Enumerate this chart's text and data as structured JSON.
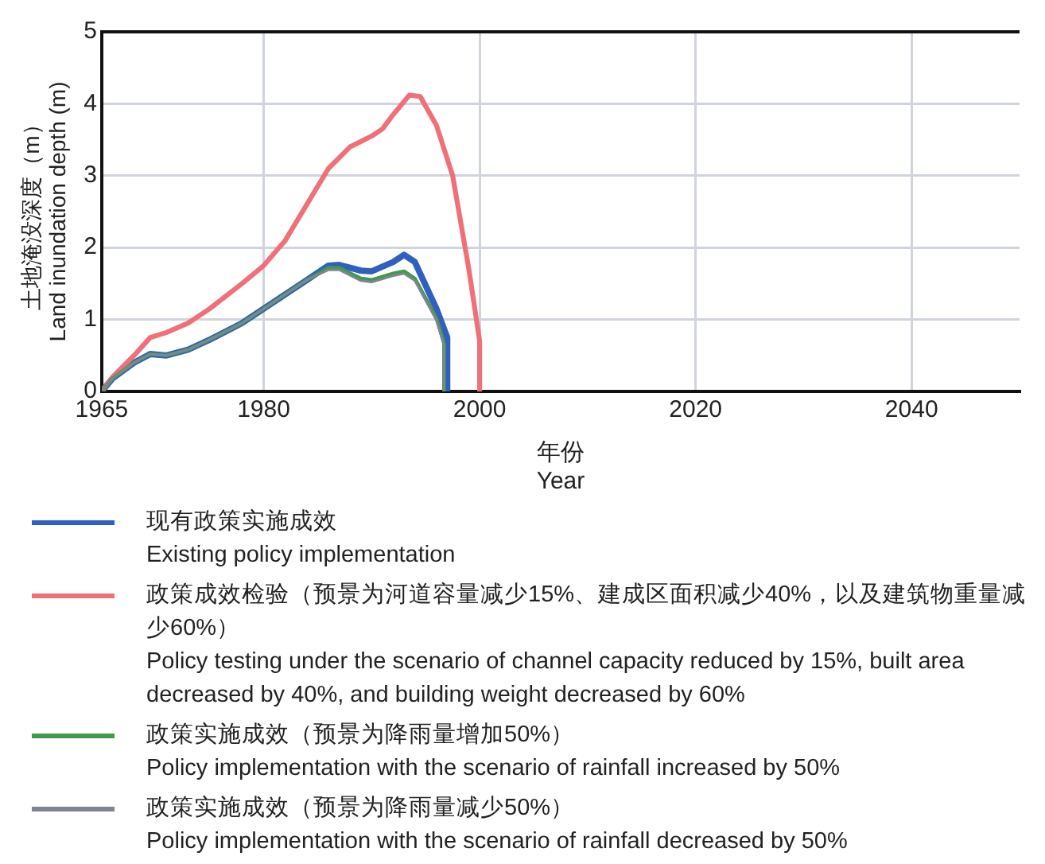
{
  "chart_data": {
    "type": "line",
    "xlabel": "年份\nYear",
    "ylabel": "土地淹没深度（m）\nLand inundation depth (m)",
    "xlim": [
      1965,
      2050
    ],
    "xticks": [
      1965,
      1980,
      2000,
      2020,
      2040
    ],
    "ylim": [
      0,
      5
    ],
    "yticks": [
      0,
      1,
      2,
      3,
      4,
      5
    ],
    "grid": true,
    "legend": "bottom",
    "marker": "none",
    "line_style": "solid",
    "series": [
      {
        "name": "现有政策实施成效\nExisting policy implementation",
        "color": "#2f5fbf",
        "x": [
          1965,
          1966,
          1968,
          1969.5,
          1971,
          1973,
          1975,
          1978,
          1980,
          1982,
          1984,
          1986,
          1987,
          1989,
          1990,
          1992,
          1993,
          1994,
          1996,
          1997,
          1997
        ],
        "values": [
          0,
          0.18,
          0.4,
          0.52,
          0.5,
          0.58,
          0.72,
          0.95,
          1.15,
          1.35,
          1.55,
          1.75,
          1.76,
          1.68,
          1.67,
          1.8,
          1.9,
          1.8,
          1.15,
          0.75,
          0
        ]
      },
      {
        "name": "政策成效检验（预景为河道容量减少15%、建成区面积减少40%，以及建筑物重量减少60%）\nPolicy testing under the scenario of channel capacity reduced by 15%, built area decreased by 40%, and building weight decreased by 60%",
        "color": "#f0707a",
        "x": [
          1965,
          1966,
          1968,
          1969.5,
          1971,
          1973,
          1975,
          1978,
          1980,
          1982,
          1984,
          1986,
          1988,
          1990,
          1991,
          1992,
          1993.5,
          1994.5,
          1996,
          1997.5,
          1999,
          2000,
          2000
        ],
        "values": [
          0,
          0.2,
          0.5,
          0.75,
          0.82,
          0.95,
          1.15,
          1.5,
          1.75,
          2.1,
          2.6,
          3.1,
          3.4,
          3.55,
          3.65,
          3.85,
          4.12,
          4.1,
          3.7,
          3.0,
          1.7,
          0.7,
          0
        ]
      },
      {
        "name": "政策实施成效（预景为降雨量增加50%）\nPolicy implementation with the scenario of rainfall increased by 50%",
        "color": "#3f9a4a",
        "x": [
          1965,
          1966,
          1968,
          1969.5,
          1971,
          1973,
          1975,
          1978,
          1980,
          1982,
          1984,
          1986,
          1987,
          1989,
          1990,
          1992,
          1993,
          1994,
          1996,
          1996.7,
          1996.7
        ],
        "values": [
          0,
          0.18,
          0.4,
          0.52,
          0.5,
          0.58,
          0.72,
          0.95,
          1.15,
          1.35,
          1.55,
          1.72,
          1.72,
          1.57,
          1.55,
          1.64,
          1.67,
          1.57,
          1.02,
          0.67,
          0
        ]
      },
      {
        "name": "政策实施成效（预景为降雨量减少50%）\nPolicy implementation with the scenario of rainfall decreased by 50%",
        "color": "#7f8590",
        "x": [
          1965,
          1966,
          1968,
          1969.5,
          1971,
          1973,
          1975,
          1978,
          1980,
          1982,
          1984,
          1986,
          1987,
          1989,
          1990,
          1992,
          1993,
          1994,
          1996,
          1996.7,
          1996.7
        ],
        "values": [
          0,
          0.18,
          0.4,
          0.52,
          0.5,
          0.58,
          0.72,
          0.95,
          1.15,
          1.35,
          1.55,
          1.69,
          1.69,
          1.54,
          1.52,
          1.61,
          1.64,
          1.54,
          0.99,
          0.64,
          0
        ]
      }
    ]
  }
}
